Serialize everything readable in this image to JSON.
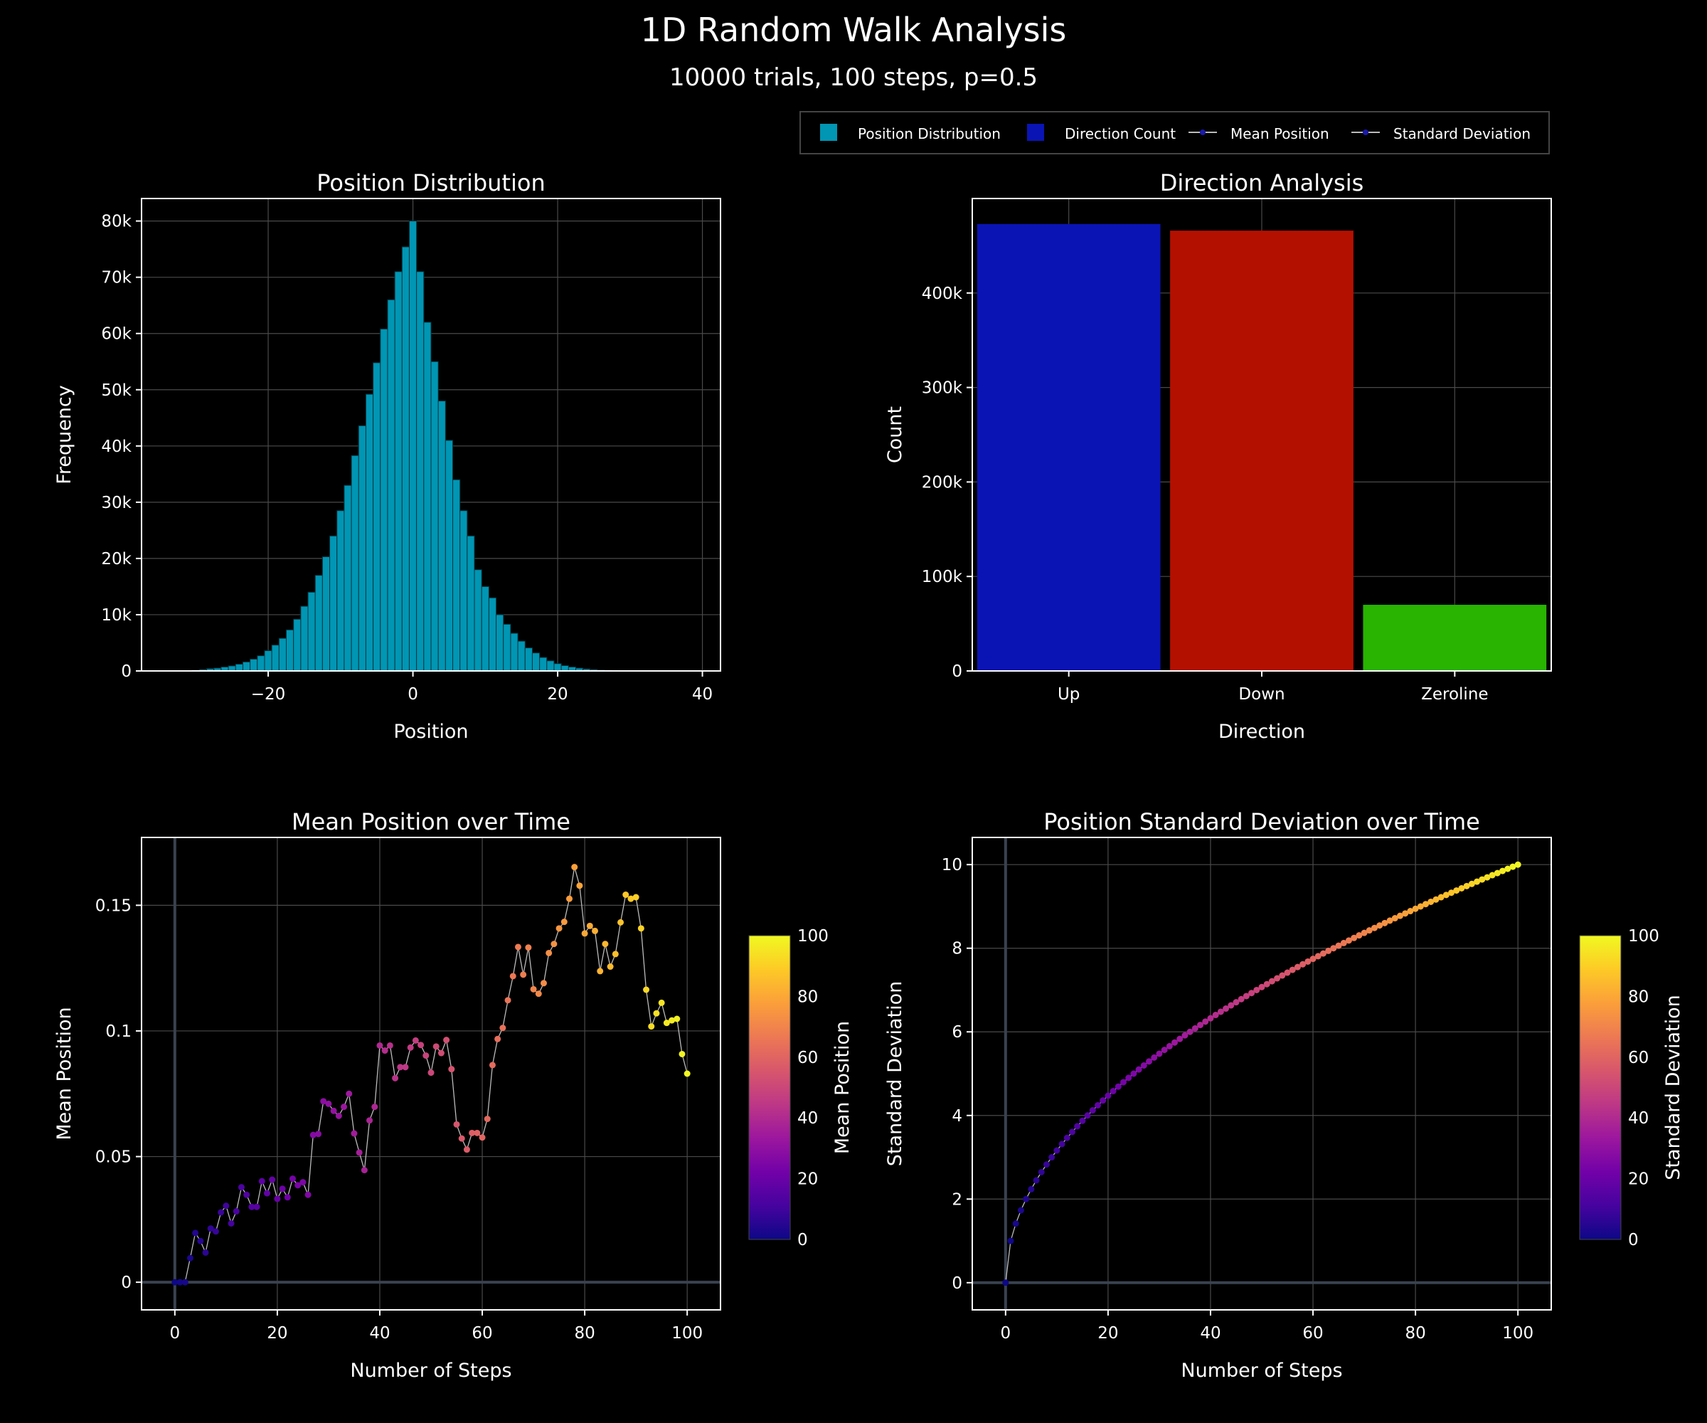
{
  "title": "1D Random Walk Analysis",
  "subtitle": "10000 trials, 100 steps, p=0.5",
  "legend": {
    "placement": "top-right",
    "items": [
      {
        "label": "Position Distribution",
        "color": "#0096b4",
        "kind": "bar"
      },
      {
        "label": "Direction Count",
        "color": "#0a14b4",
        "kind": "bar"
      },
      {
        "label": "Mean Position",
        "color": "#1a1aa8",
        "kind": "line"
      },
      {
        "label": "Standard Deviation",
        "color": "#1a1aa8",
        "kind": "line"
      }
    ]
  },
  "colors": {
    "background": "#000000",
    "grid": "#4a4a4a",
    "histogram": "#0096b4",
    "up": "#0a14b4",
    "down": "#b41000",
    "zeroline": "#28b400",
    "colorscale": [
      "#0d0887",
      "#46039f",
      "#7201a8",
      "#9c179e",
      "#bd3786",
      "#d8576b",
      "#ed7953",
      "#fb9f3a",
      "#fdca26",
      "#f0f921"
    ]
  },
  "chart_data": [
    {
      "type": "bar",
      "title": "Position Distribution",
      "xlabel": "Position",
      "ylabel": "Frequency",
      "xlim": [
        -37.5,
        42.5
      ],
      "ylim": [
        0,
        84000
      ],
      "xticks": [
        -20,
        0,
        20,
        40
      ],
      "xtick_labels": [
        "−20",
        "0",
        "20",
        "40"
      ],
      "yticks": [
        0,
        10000,
        20000,
        30000,
        40000,
        50000,
        60000,
        70000,
        80000
      ],
      "ytick_labels": [
        "0",
        "10k",
        "20k",
        "30k",
        "40k",
        "50k",
        "60k",
        "70k",
        "80k"
      ],
      "grid": true,
      "bin_width": 1,
      "x": [
        -30,
        -29,
        -28,
        -27,
        -26,
        -25,
        -24,
        -23,
        -22,
        -21,
        -20,
        -19,
        -18,
        -17,
        -16,
        -15,
        -14,
        -13,
        -12,
        -11,
        -10,
        -9,
        -8,
        -7,
        -6,
        -5,
        -4,
        -3,
        -2,
        -1,
        0,
        1,
        2,
        3,
        4,
        5,
        6,
        7,
        8,
        9,
        10,
        11,
        12,
        13,
        14,
        15,
        16,
        17,
        18,
        19,
        20,
        21,
        22,
        23,
        24,
        25,
        26,
        27,
        28,
        29,
        30,
        31,
        32,
        33,
        34,
        35
      ],
      "values": [
        150,
        250,
        400,
        500,
        700,
        900,
        1200,
        1600,
        2100,
        2700,
        3600,
        4600,
        5800,
        7300,
        9200,
        11500,
        14000,
        17000,
        20300,
        24000,
        28500,
        33000,
        38300,
        43600,
        49200,
        54800,
        60800,
        66000,
        71000,
        75400,
        80000,
        71000,
        62000,
        55000,
        48000,
        41000,
        34000,
        28500,
        24000,
        18000,
        15000,
        13000,
        10000,
        8300,
        6700,
        5300,
        4100,
        3200,
        2400,
        1800,
        1300,
        950,
        700,
        500,
        350,
        250,
        180,
        120,
        80,
        60,
        40,
        30,
        20,
        15,
        10,
        5
      ]
    },
    {
      "type": "bar",
      "title": "Direction Analysis",
      "xlabel": "Direction",
      "ylabel": "Count",
      "categories": [
        "Up",
        "Down",
        "Zeroline"
      ],
      "values": [
        473000,
        466000,
        70000
      ],
      "bar_colors": [
        "#0a14b4",
        "#b41000",
        "#28b400"
      ],
      "ylim": [
        0,
        500000
      ],
      "yticks": [
        0,
        100000,
        200000,
        300000,
        400000
      ],
      "ytick_labels": [
        "0",
        "100k",
        "200k",
        "300k",
        "400k"
      ],
      "grid": true
    },
    {
      "type": "scatter",
      "mode": "lines+markers",
      "title": "Mean Position over Time",
      "xlabel": "Number of Steps",
      "ylabel": "Mean Position",
      "colorbar_title": "Mean Position",
      "colorbar_range": [
        0,
        100
      ],
      "colorbar_ticks": [
        "0",
        "20",
        "40",
        "60",
        "80",
        "100"
      ],
      "xlim": [
        -6.5,
        106.5
      ],
      "ylim": [
        -0.011,
        0.177
      ],
      "xticks": [
        0,
        20,
        40,
        60,
        80,
        100
      ],
      "xtick_labels": [
        "0",
        "20",
        "40",
        "60",
        "80",
        "100"
      ],
      "yticks": [
        0,
        0.05,
        0.1,
        0.15
      ],
      "ytick_labels": [
        "0",
        "0.05",
        "0.1",
        "0.15"
      ],
      "grid": true,
      "x": [
        0,
        1,
        2,
        3,
        4,
        5,
        6,
        7,
        8,
        9,
        10,
        11,
        12,
        13,
        14,
        15,
        16,
        17,
        18,
        19,
        20,
        21,
        22,
        23,
        24,
        25,
        26,
        27,
        28,
        29,
        30,
        31,
        32,
        33,
        34,
        35,
        36,
        37,
        38,
        39,
        40,
        41,
        42,
        43,
        44,
        45,
        46,
        47,
        48,
        49,
        50,
        51,
        52,
        53,
        54,
        55,
        56,
        57,
        58,
        59,
        60,
        61,
        62,
        63,
        64,
        65,
        66,
        67,
        68,
        69,
        70,
        71,
        72,
        73,
        74,
        75,
        76,
        77,
        78,
        79,
        80,
        81,
        82,
        83,
        84,
        85,
        86,
        87,
        88,
        89,
        90,
        91,
        92,
        93,
        94,
        95,
        96,
        97,
        98,
        99,
        100
      ],
      "values": [
        0,
        0,
        0,
        0.0096,
        0.0196,
        0.0164,
        0.0118,
        0.0214,
        0.0202,
        0.0278,
        0.0304,
        0.0234,
        0.0282,
        0.0378,
        0.0348,
        0.03,
        0.03,
        0.0402,
        0.0354,
        0.0408,
        0.0332,
        0.0372,
        0.0338,
        0.0412,
        0.0386,
        0.0398,
        0.0348,
        0.0586,
        0.059,
        0.072,
        0.071,
        0.0682,
        0.0662,
        0.0698,
        0.075,
        0.0592,
        0.0516,
        0.0446,
        0.0644,
        0.0698,
        0.0942,
        0.0922,
        0.0942,
        0.0812,
        0.0856,
        0.0856,
        0.0934,
        0.0962,
        0.0944,
        0.0902,
        0.0834,
        0.0938,
        0.0912,
        0.0964,
        0.0848,
        0.0628,
        0.0572,
        0.0528,
        0.0594,
        0.0594,
        0.0576,
        0.065,
        0.0864,
        0.0968,
        0.1012,
        0.1122,
        0.1218,
        0.1334,
        0.1224,
        0.1332,
        0.1166,
        0.1148,
        0.119,
        0.131,
        0.1346,
        0.1408,
        0.1434,
        0.1526,
        0.1652,
        0.1578,
        0.1388,
        0.1418,
        0.1398,
        0.1238,
        0.1346,
        0.1256,
        0.1306,
        0.1432,
        0.1542,
        0.1526,
        0.1532,
        0.1408,
        0.1164,
        0.1018,
        0.107,
        0.1112,
        0.1032,
        0.1042,
        0.1048,
        0.0908,
        0.083
      ]
    },
    {
      "type": "scatter",
      "mode": "lines+markers",
      "title": "Position Standard Deviation over Time",
      "xlabel": "Number of Steps",
      "ylabel": "Standard Deviation",
      "colorbar_title": "Standard Deviation",
      "colorbar_range": [
        0,
        100
      ],
      "colorbar_ticks": [
        "0",
        "20",
        "40",
        "60",
        "80",
        "100"
      ],
      "xlim": [
        -6.5,
        106.5
      ],
      "ylim": [
        -0.65,
        10.65
      ],
      "xticks": [
        0,
        20,
        40,
        60,
        80,
        100
      ],
      "xtick_labels": [
        "0",
        "20",
        "40",
        "60",
        "80",
        "100"
      ],
      "yticks": [
        0,
        2,
        4,
        6,
        8,
        10
      ],
      "ytick_labels": [
        "0",
        "2",
        "4",
        "6",
        "8",
        "10"
      ],
      "grid": true,
      "x": [
        0,
        1,
        2,
        3,
        4,
        5,
        6,
        7,
        8,
        9,
        10,
        11,
        12,
        13,
        14,
        15,
        16,
        17,
        18,
        19,
        20,
        21,
        22,
        23,
        24,
        25,
        26,
        27,
        28,
        29,
        30,
        31,
        32,
        33,
        34,
        35,
        36,
        37,
        38,
        39,
        40,
        41,
        42,
        43,
        44,
        45,
        46,
        47,
        48,
        49,
        50,
        51,
        52,
        53,
        54,
        55,
        56,
        57,
        58,
        59,
        60,
        61,
        62,
        63,
        64,
        65,
        66,
        67,
        68,
        69,
        70,
        71,
        72,
        73,
        74,
        75,
        76,
        77,
        78,
        79,
        80,
        81,
        82,
        83,
        84,
        85,
        86,
        87,
        88,
        89,
        90,
        91,
        92,
        93,
        94,
        95,
        96,
        97,
        98,
        99,
        100
      ],
      "values": [
        0,
        1,
        1.414,
        1.732,
        2,
        2.236,
        2.449,
        2.646,
        2.828,
        3,
        3.162,
        3.317,
        3.464,
        3.606,
        3.742,
        3.873,
        4,
        4.123,
        4.243,
        4.359,
        4.472,
        4.583,
        4.69,
        4.796,
        4.899,
        5,
        5.099,
        5.196,
        5.292,
        5.385,
        5.477,
        5.568,
        5.657,
        5.745,
        5.831,
        5.916,
        6,
        6.083,
        6.164,
        6.245,
        6.325,
        6.403,
        6.481,
        6.557,
        6.633,
        6.708,
        6.782,
        6.856,
        6.928,
        7,
        7.071,
        7.141,
        7.211,
        7.28,
        7.348,
        7.416,
        7.483,
        7.55,
        7.616,
        7.681,
        7.746,
        7.81,
        7.874,
        7.937,
        8,
        8.062,
        8.124,
        8.185,
        8.246,
        8.307,
        8.367,
        8.426,
        8.485,
        8.544,
        8.602,
        8.66,
        8.718,
        8.775,
        8.832,
        8.888,
        8.944,
        9,
        9.055,
        9.11,
        9.165,
        9.22,
        9.274,
        9.327,
        9.381,
        9.434,
        9.487,
        9.539,
        9.592,
        9.644,
        9.695,
        9.747,
        9.798,
        9.849,
        9.899,
        9.95,
        10
      ]
    }
  ]
}
